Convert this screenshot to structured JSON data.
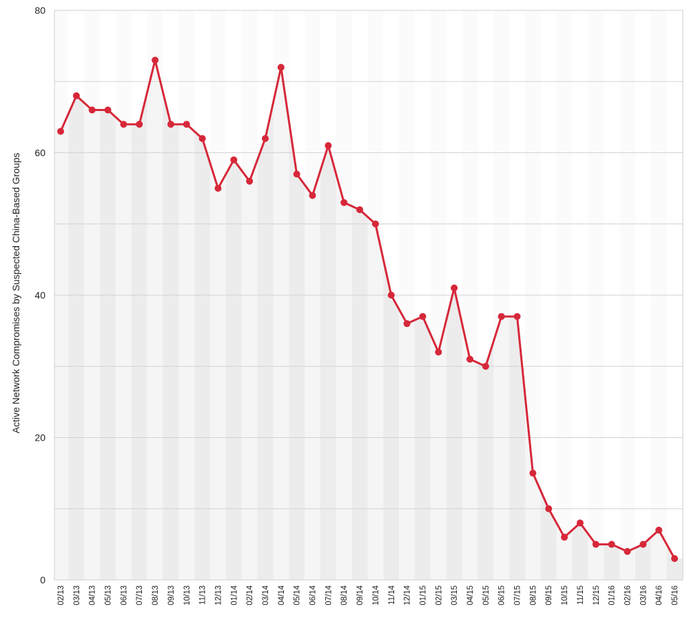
{
  "chart_data": {
    "type": "line",
    "title": "",
    "xlabel": "",
    "ylabel": "Active Network Compromises by Suspected China-Based Groups",
    "ylim": [
      0,
      80
    ],
    "yticks": [
      0,
      20,
      40,
      60,
      80
    ],
    "grid": true,
    "line_color": "#d62839",
    "categories": [
      "02/13",
      "03/13",
      "04/13",
      "05/13",
      "06/13",
      "07/13",
      "08/13",
      "09/13",
      "10/13",
      "11/13",
      "12/13",
      "01/14",
      "02/14",
      "03/14",
      "04/14",
      "05/14",
      "06/14",
      "07/14",
      "08/14",
      "09/14",
      "10/14",
      "11/14",
      "12/14",
      "01/15",
      "02/15",
      "03/15",
      "04/15",
      "05/15",
      "06/15",
      "07/15",
      "08/15",
      "09/15",
      "10/15",
      "11/15",
      "12/15",
      "01/16",
      "02/16",
      "03/16",
      "04/16",
      "05/16"
    ],
    "series": [
      {
        "values": [
          63,
          68,
          66,
          66,
          64,
          64,
          73,
          64,
          64,
          62,
          55,
          59,
          56,
          62,
          72,
          57,
          54,
          61,
          53,
          52,
          50,
          40,
          36,
          37,
          32,
          41,
          31,
          30,
          37,
          37,
          15,
          10,
          6,
          8,
          5,
          5,
          4,
          5,
          7,
          3
        ]
      }
    ]
  }
}
